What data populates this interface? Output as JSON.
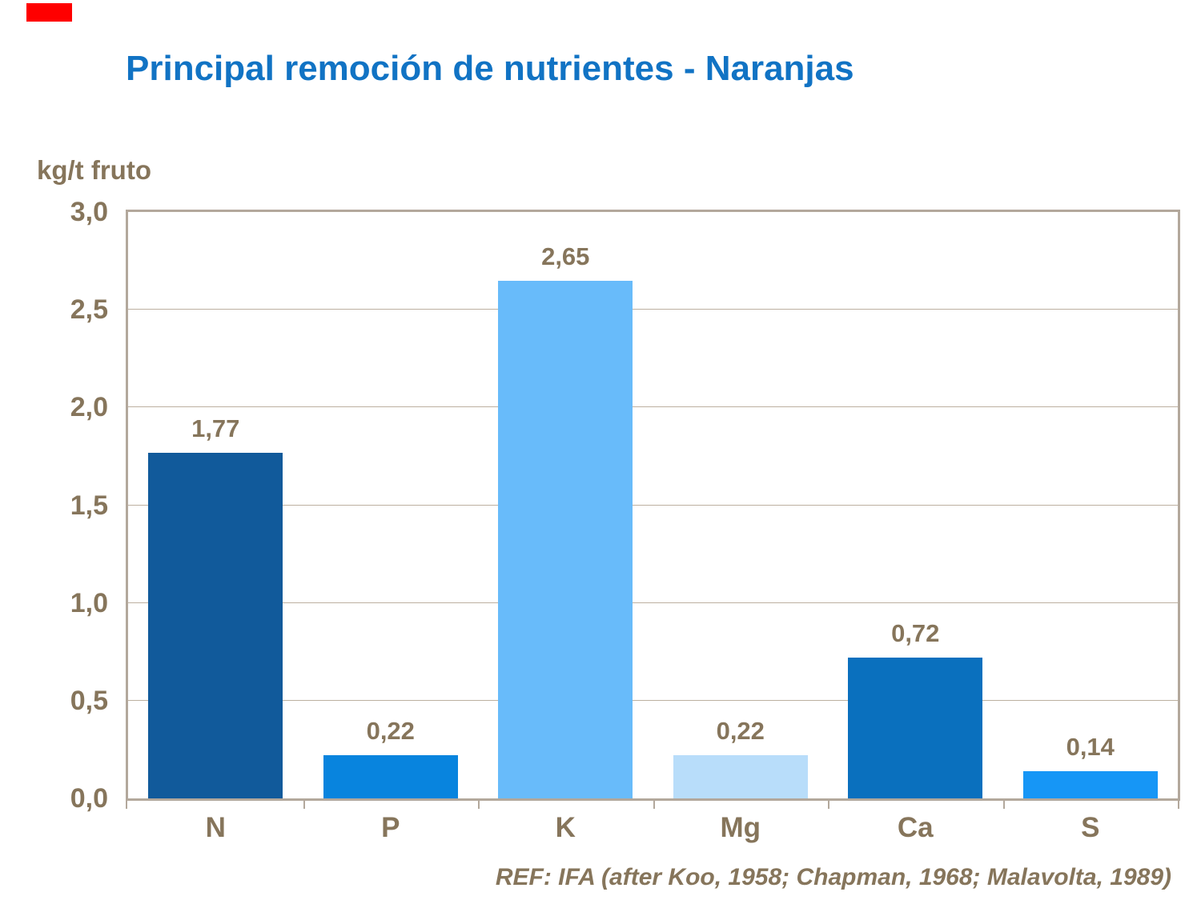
{
  "page": {
    "background": "#ffffff",
    "text_brown": "#86755B",
    "title_blue": "#1173C4",
    "axis_frame_color": "#B3A89C",
    "gridline_color": "#BCB0A0",
    "red_marker_color": "#FF0000"
  },
  "title": {
    "text": "Principal remoción de nutrientes - Naranjas"
  },
  "footer": {
    "ref_text": "REF: IFA (after Koo, 1958; Chapman, 1968; Malavolta, 1989)"
  },
  "chart_data": {
    "type": "bar",
    "title": "Principal remoción de nutrientes - Naranjas",
    "xlabel": "",
    "ylabel": "kg/t fruto",
    "categories": [
      "N",
      "P",
      "K",
      "Mg",
      "Ca",
      "S"
    ],
    "values": [
      1.77,
      0.22,
      2.65,
      0.22,
      0.72,
      0.14
    ],
    "value_labels": [
      "1,77",
      "0,22",
      "2,65",
      "0,22",
      "0,72",
      "0,14"
    ],
    "bar_colors": [
      "#115A9B",
      "#0884DE",
      "#68BBFA",
      "#B8DDFA",
      "#0A70BE",
      "#1696F6"
    ],
    "ylim": [
      0,
      3
    ],
    "ytick_values": [
      3.0,
      2.5,
      2.0,
      1.5,
      1.0,
      0.5,
      0.0
    ],
    "ytick_labels": [
      "3,0",
      "2,5",
      "2,0",
      "1,5",
      "1,0",
      "0,5",
      "0,0"
    ],
    "gridline_values": [
      0.5,
      1.0,
      1.5,
      2.0,
      2.5
    ],
    "grid": true,
    "legend": false,
    "decimal_separator": ","
  }
}
